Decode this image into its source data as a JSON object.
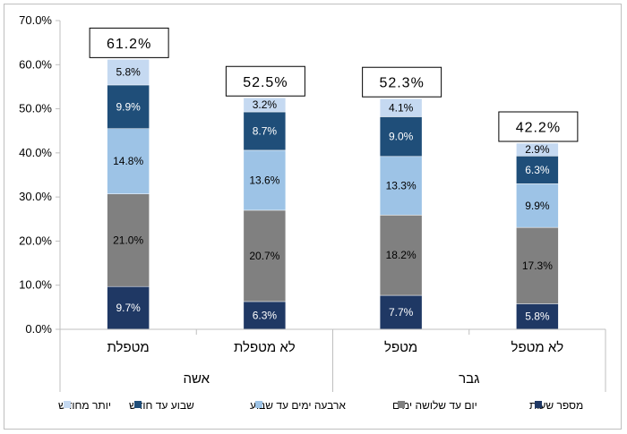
{
  "chart_data": {
    "type": "bar",
    "stacked": true,
    "direction": "rtl",
    "categories": [
      "לא מטפל",
      "מטפל",
      "לא מטפלת",
      "מטפלת"
    ],
    "groups": [
      {
        "label": "גבר",
        "categories": [
          "לא מטפל",
          "מטפל"
        ]
      },
      {
        "label": "אשה",
        "categories": [
          "לא מטפלת",
          "מטפלת"
        ]
      }
    ],
    "series": [
      {
        "name": "מספר שעות",
        "color": "#1f3864",
        "values": [
          5.8,
          7.7,
          6.3,
          9.7
        ],
        "labels": [
          "5.8%",
          "7.7%",
          "6.3%",
          "9.7%"
        ],
        "label_color": "#ffffff"
      },
      {
        "name": "יום עד שלושה ימים",
        "color": "#808080",
        "values": [
          17.3,
          18.2,
          20.7,
          21.0
        ],
        "labels": [
          "17.3%",
          "18.2%",
          "20.7%",
          "21.0%"
        ],
        "label_color": "#000000"
      },
      {
        "name": "ארבעה ימים עד שבוע",
        "color": "#9dc3e6",
        "values": [
          9.9,
          13.3,
          13.6,
          14.8
        ],
        "labels": [
          "9.9%",
          "13.3%",
          "13.6%",
          "14.8%"
        ],
        "label_color": "#000000"
      },
      {
        "name": "שבוע עד חודש",
        "color": "#1f4e79",
        "values": [
          6.3,
          9.0,
          8.7,
          9.9
        ],
        "labels": [
          "6.3%",
          "9.0%",
          "8.7%",
          "9.9%"
        ],
        "label_color": "#ffffff"
      },
      {
        "name": "יותר מחודש",
        "color": "#c5d9f1",
        "values": [
          2.9,
          4.1,
          3.2,
          5.8
        ],
        "labels": [
          "2.9%",
          "4.1%",
          "3.2%",
          "5.8%"
        ],
        "label_color": "#000000"
      }
    ],
    "totals": [
      "42.2%",
      "52.3%",
      "52.5%",
      "61.2%"
    ],
    "ylim": [
      0,
      70
    ],
    "yticks": [
      "0.0%",
      "10.0%",
      "20.0%",
      "30.0%",
      "40.0%",
      "50.0%",
      "60.0%",
      "70.0%"
    ],
    "legend_position": "bottom",
    "grid": false
  }
}
